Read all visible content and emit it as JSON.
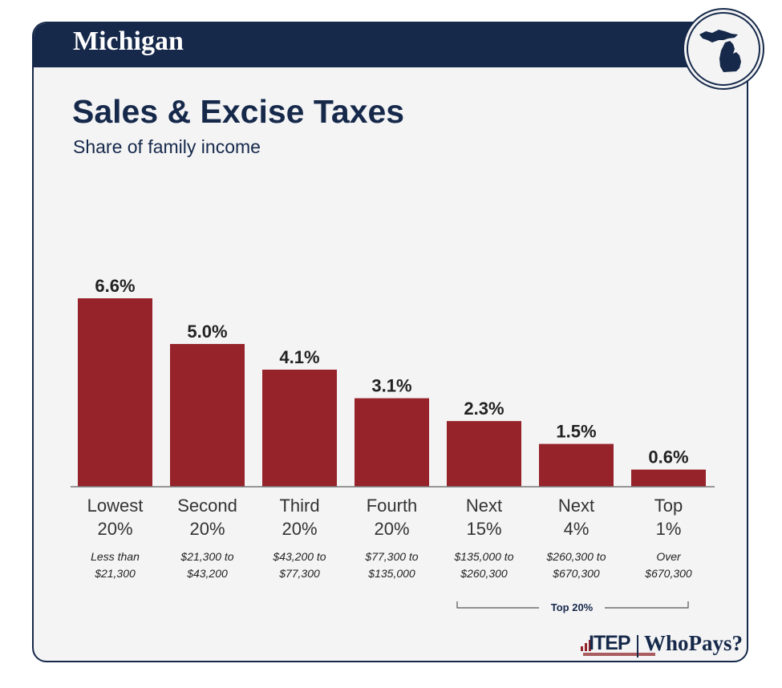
{
  "header": {
    "state": "Michigan"
  },
  "chart_data": {
    "type": "bar",
    "title": "Sales & Excise Taxes",
    "subtitle": "Share of family income",
    "categories": [
      [
        "Lowest",
        "20%"
      ],
      [
        "Second",
        "20%"
      ],
      [
        "Third",
        "20%"
      ],
      [
        "Fourth",
        "20%"
      ],
      [
        "Next",
        "15%"
      ],
      [
        "Next",
        "4%"
      ],
      [
        "Top",
        "1%"
      ]
    ],
    "income_ranges": [
      [
        "Less than",
        "$21,300"
      ],
      [
        "$21,300 to",
        "$43,200"
      ],
      [
        "$43,200 to",
        "$77,300"
      ],
      [
        "$77,300 to",
        "$135,000"
      ],
      [
        "$135,000 to",
        "$260,300"
      ],
      [
        "$260,300 to",
        "$670,300"
      ],
      [
        "Over",
        "$670,300"
      ]
    ],
    "values": [
      6.6,
      5.0,
      4.1,
      3.1,
      2.3,
      1.5,
      0.6
    ],
    "value_labels": [
      "6.6%",
      "5.0%",
      "4.1%",
      "3.1%",
      "2.3%",
      "1.5%",
      "0.6%"
    ],
    "bracket_label": "Top 20%",
    "ylim": [
      0,
      6.6
    ],
    "colors": {
      "bar": "#96222a",
      "text": "#16294a"
    }
  },
  "footer": {
    "org": "ITEP",
    "product": "WhoPays?"
  }
}
